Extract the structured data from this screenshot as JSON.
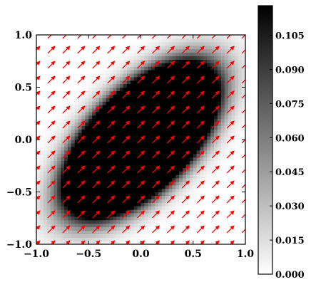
{
  "chart_data": {
    "type": "heatmap",
    "title": "",
    "xlabel": "",
    "ylabel": "",
    "xlim": [
      -1.0,
      1.0
    ],
    "ylim": [
      -1.0,
      1.0
    ],
    "x_ticks": [
      "−1.0",
      "−0.5",
      "0.0",
      "0.5",
      "1.0"
    ],
    "y_ticks": [
      "−1.0",
      "−0.5",
      "0.0",
      "0.5",
      "1.0"
    ],
    "x_tick_values": [
      -1.0,
      -0.5,
      0.0,
      0.5,
      1.0
    ],
    "y_tick_values": [
      -1.0,
      -0.5,
      0.0,
      0.5,
      1.0
    ],
    "heatmap": {
      "description_of_field": "bivariate normal density",
      "mean": [
        0.0,
        0.0
      ],
      "covariance": [
        [
          0.1,
          0.06
        ],
        [
          0.06,
          0.1
        ]
      ],
      "grid_n": 60,
      "colormap": "gray_r",
      "vmin": 0.0,
      "vmax": 0.118
    },
    "quiver": {
      "grid_n": 15,
      "u": 1.0,
      "v": 1.0,
      "color": "#ff0000"
    },
    "colorbar": {
      "ticks": [
        "0.000",
        "0.015",
        "0.030",
        "0.045",
        "0.060",
        "0.075",
        "0.090",
        "0.105"
      ],
      "tick_values": [
        0.0,
        0.015,
        0.03,
        0.045,
        0.06,
        0.075,
        0.09,
        0.105
      ],
      "range": [
        0.0,
        0.118
      ]
    },
    "grid": false
  }
}
